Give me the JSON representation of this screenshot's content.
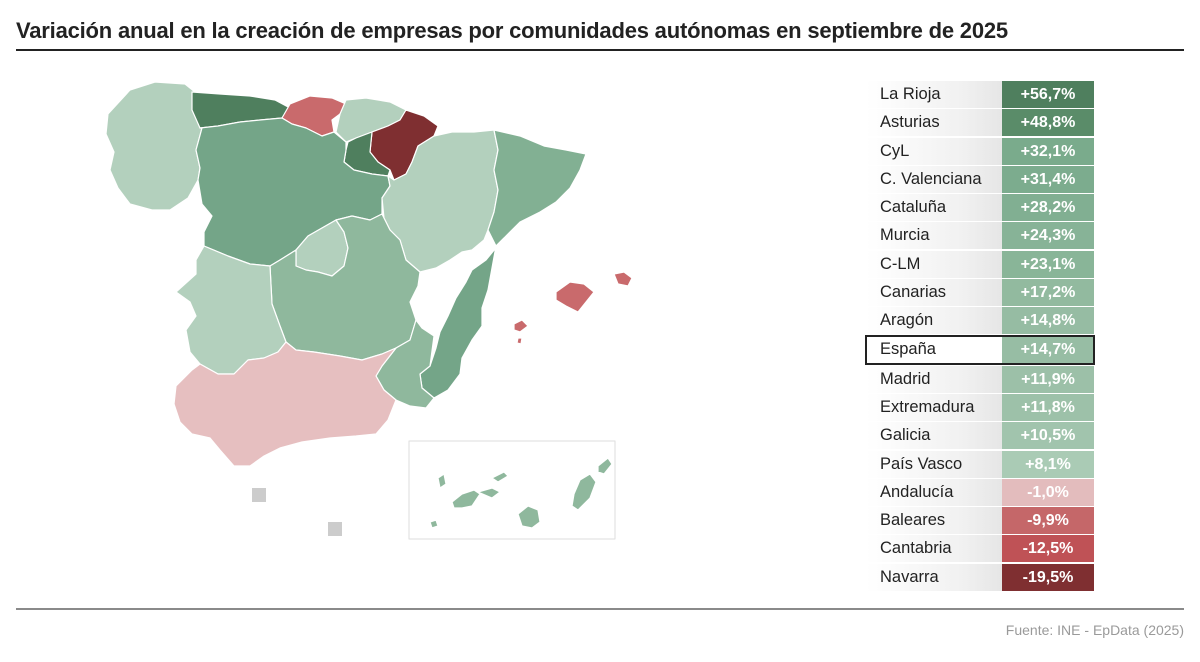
{
  "title": "Variación anual en la creación de empresas por comunidades autónomas en septiembre de 2025",
  "source": "Fuente: INE - EpData (2025)",
  "colors": {
    "dark_green": "#4f7f5e",
    "mid_green": "#74a588",
    "light_green": "#8fb89d",
    "pale_green": "#b3d0bd",
    "pale_red": "#e6bfc0",
    "mid_red": "#c96a6c",
    "red": "#bf5256",
    "dark_red": "#7f2f31",
    "gray": "#cccccc"
  },
  "ranking": [
    {
      "name": "La Rioja",
      "value": "+56,7%",
      "color": "#4f7f5e"
    },
    {
      "name": "Asturias",
      "value": "+48,8%",
      "color": "#5a8c69"
    },
    {
      "name": "CyL",
      "value": "+32,1%",
      "color": "#7aab8c"
    },
    {
      "name": "C. Valenciana",
      "value": "+31,4%",
      "color": "#7cac8e"
    },
    {
      "name": "Cataluña",
      "value": "+28,2%",
      "color": "#81af92"
    },
    {
      "name": "Murcia",
      "value": "+24,3%",
      "color": "#87b397"
    },
    {
      "name": "C-LM",
      "value": "+23,1%",
      "color": "#89b598"
    },
    {
      "name": "Canarias",
      "value": "+17,2%",
      "color": "#92ba9f"
    },
    {
      "name": "Aragón",
      "value": "+14,8%",
      "color": "#96bca3"
    },
    {
      "name": "España",
      "value": "+14,7%",
      "color": "#97bda4",
      "highlight": true
    },
    {
      "name": "Madrid",
      "value": "+11,9%",
      "color": "#9cc0a8"
    },
    {
      "name": "Extremadura",
      "value": "+11,8%",
      "color": "#9dc1a9"
    },
    {
      "name": "Galicia",
      "value": "+10,5%",
      "color": "#a1c4ad"
    },
    {
      "name": "País Vasco",
      "value": "+8,1%",
      "color": "#aacbb5"
    },
    {
      "name": "Andalucía",
      "value": "-1,0%",
      "color": "#e3bcbd"
    },
    {
      "name": "Baleares",
      "value": "-9,9%",
      "color": "#c56769"
    },
    {
      "name": "Cantabria",
      "value": "-12,5%",
      "color": "#bf5256"
    },
    {
      "name": "Navarra",
      "value": "-19,5%",
      "color": "#7f2f31"
    }
  ],
  "map_regions": [
    {
      "name": "Galicia",
      "value": "+10,5%",
      "color": "#b3d0bd"
    },
    {
      "name": "Asturias",
      "value": "+48,8%",
      "color": "#4f7f5e"
    },
    {
      "name": "Cantabria",
      "value": "-12,5%",
      "color": "#c96a6c"
    },
    {
      "name": "País Vasco",
      "value": "+8,1%",
      "color": "#b3d0bd"
    },
    {
      "name": "Navarra",
      "value": "-19,5%",
      "color": "#7f2f31"
    },
    {
      "name": "La Rioja",
      "value": "+56,7%",
      "color": "#4f7f5e"
    },
    {
      "name": "CyL",
      "value": "+32,1%",
      "color": "#74a588"
    },
    {
      "name": "Aragón",
      "value": "+14,8%",
      "color": "#b3d0bd"
    },
    {
      "name": "Cataluña",
      "value": "+28,2%",
      "color": "#82b093"
    },
    {
      "name": "Madrid",
      "value": "+11,9%",
      "color": "#b3d0bd"
    },
    {
      "name": "C-LM",
      "value": "+23,1%",
      "color": "#8fb89d"
    },
    {
      "name": "Extremadura",
      "value": "+11,8%",
      "color": "#b3d0bd"
    },
    {
      "name": "C. Valenciana",
      "value": "+31,4%",
      "color": "#74a588"
    },
    {
      "name": "Murcia",
      "value": "+24,3%",
      "color": "#8fb89d"
    },
    {
      "name": "Andalucía",
      "value": "-1,0%",
      "color": "#e6bfc0"
    },
    {
      "name": "Baleares",
      "value": "-9,9%",
      "color": "#c96a6c"
    },
    {
      "name": "Canarias",
      "value": "+17,2%",
      "color": "#8fb89d"
    },
    {
      "name": "Ceuta",
      "value": "",
      "color": "#cccccc"
    },
    {
      "name": "Melilla",
      "value": "",
      "color": "#cccccc"
    }
  ]
}
